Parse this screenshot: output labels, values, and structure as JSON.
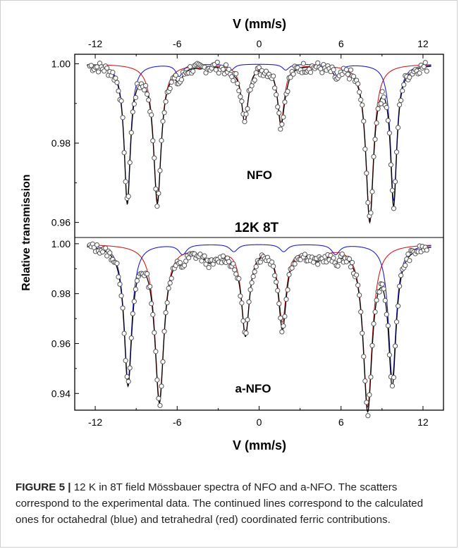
{
  "figure": {
    "label": "FIGURE 5 |",
    "caption": " 12 K in 8T field Mössbauer spectra of NFO and a-NFO. The scatters correspond to the experimental data. The continued lines correspond to the calculated ones for octahedral (blue) and tetrahedral (red) coordinated ferric contributions."
  },
  "colors": {
    "octahedral": "#1f1fc8",
    "tetrahedral": "#d01c1c",
    "fit_total": "#000000",
    "points": "#555555"
  },
  "chart_data": [
    {
      "type": "line",
      "panel": "NFO",
      "annotation": "12K  8T",
      "xlabel_top": "V (mm/s)",
      "ylabel": "Relative transmission",
      "xlim": [
        -13.5,
        13.5
      ],
      "ylim": [
        0.9562,
        1.0024
      ],
      "x_ticks": [
        -12,
        -6,
        0,
        6,
        12
      ],
      "y_ticks": [
        "1.00",
        "0.98",
        "0.96"
      ],
      "octahedral_lines": [
        {
          "center": -9.65,
          "depth": 0.0345,
          "width": 0.28
        },
        {
          "center": -5.85,
          "depth": 0.003,
          "width": 0.3
        },
        {
          "center": -2.05,
          "depth": 0.0015,
          "width": 0.3
        },
        {
          "center": 1.95,
          "depth": 0.0015,
          "width": 0.3
        },
        {
          "center": 5.75,
          "depth": 0.003,
          "width": 0.3
        },
        {
          "center": 9.85,
          "depth": 0.0345,
          "width": 0.28
        }
      ],
      "tetrahedral_lines": [
        {
          "center": -7.45,
          "depth": 0.0345,
          "width": 0.34
        },
        {
          "center": -4.3,
          "depth": 0.0005,
          "width": 0.3
        },
        {
          "center": -1.05,
          "depth": 0.0145,
          "width": 0.3
        },
        {
          "center": 1.6,
          "depth": 0.0145,
          "width": 0.3
        },
        {
          "center": 4.9,
          "depth": 0.0005,
          "width": 0.3
        },
        {
          "center": 8.1,
          "depth": 0.039,
          "width": 0.34
        }
      ]
    },
    {
      "type": "line",
      "panel": "a-NFO",
      "xlabel": "V (mm/s)",
      "xlim": [
        -13.5,
        13.5
      ],
      "ylim": [
        0.9333,
        1.0025
      ],
      "x_ticks": [
        -12,
        -6,
        0,
        6,
        12
      ],
      "y_ticks": [
        "1.00",
        "0.98",
        "0.96",
        "0.94"
      ],
      "octahedral_lines": [
        {
          "center": -9.6,
          "depth": 0.055,
          "width": 0.34
        },
        {
          "center": -5.6,
          "depth": 0.004,
          "width": 0.35
        },
        {
          "center": -1.85,
          "depth": 0.003,
          "width": 0.35
        },
        {
          "center": 1.8,
          "depth": 0.003,
          "width": 0.35
        },
        {
          "center": 5.6,
          "depth": 0.004,
          "width": 0.35
        },
        {
          "center": 9.75,
          "depth": 0.054,
          "width": 0.34
        }
      ],
      "tetrahedral_lines": [
        {
          "center": -7.3,
          "depth": 0.062,
          "width": 0.4
        },
        {
          "center": -3.5,
          "depth": 0.006,
          "width": 0.8
        },
        {
          "center": -1.0,
          "depth": 0.035,
          "width": 0.35
        },
        {
          "center": 1.7,
          "depth": 0.03,
          "width": 0.35
        },
        {
          "center": 4.2,
          "depth": 0.005,
          "width": 0.8
        },
        {
          "center": 7.95,
          "depth": 0.065,
          "width": 0.4
        }
      ]
    }
  ]
}
